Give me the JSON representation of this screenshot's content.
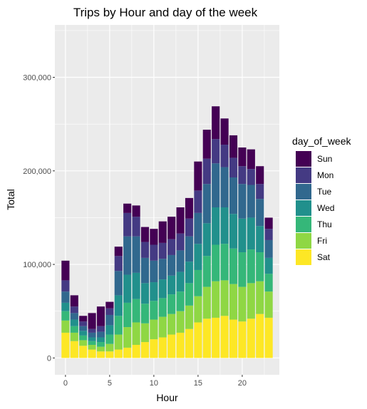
{
  "chart_data": {
    "type": "bar",
    "stacked": true,
    "title": "Trips by Hour and day of the week",
    "xlabel": "Hour",
    "ylabel": "Total",
    "xlim": [
      -1.2,
      24.2
    ],
    "ylim": [
      -18000,
      356000
    ],
    "x_ticks": [
      0,
      5,
      10,
      15,
      20
    ],
    "x_tick_labels": [
      "0",
      "5",
      "10",
      "15",
      "20"
    ],
    "y_ticks": [
      0,
      100000,
      200000,
      300000
    ],
    "y_tick_labels": [
      "0",
      "100,000",
      "200,000",
      "300,000"
    ],
    "grid": true,
    "legend": {
      "title": "day_of_week",
      "position": "right"
    },
    "x": [
      0,
      1,
      2,
      3,
      4,
      5,
      6,
      7,
      8,
      9,
      10,
      11,
      12,
      13,
      14,
      15,
      16,
      17,
      18,
      19,
      20,
      21,
      22,
      23
    ],
    "series": [
      {
        "name": "Sat",
        "color": "#FDE725",
        "values": [
          27000,
          18000,
          13000,
          9000,
          7000,
          7000,
          9000,
          11000,
          14000,
          17000,
          20000,
          22000,
          25000,
          27000,
          31000,
          38000,
          42000,
          43000,
          45000,
          41000,
          39000,
          42000,
          47000,
          43000
        ]
      },
      {
        "name": "Fri",
        "color": "#8FD744",
        "values": [
          13000,
          9000,
          6000,
          5000,
          5000,
          8000,
          16000,
          22000,
          24000,
          20000,
          21000,
          22000,
          22000,
          23000,
          25000,
          28000,
          34000,
          39000,
          38000,
          38000,
          37000,
          38000,
          35000,
          28000
        ]
      },
      {
        "name": "Thu",
        "color": "#35B779",
        "values": [
          10000,
          7000,
          5000,
          4000,
          5000,
          10000,
          20000,
          26000,
          25000,
          21000,
          20000,
          20000,
          21000,
          21000,
          24000,
          28000,
          33000,
          39000,
          39000,
          38000,
          37000,
          36000,
          31000,
          19000
        ]
      },
      {
        "name": "Wed",
        "color": "#21908C",
        "values": [
          9000,
          7000,
          5000,
          4000,
          5000,
          10000,
          22000,
          30000,
          28000,
          22000,
          20000,
          20000,
          20000,
          21000,
          23000,
          28000,
          35000,
          40000,
          39000,
          37000,
          36000,
          34000,
          28000,
          17000
        ]
      },
      {
        "name": "Tue",
        "color": "#31688E",
        "values": [
          12000,
          7000,
          5000,
          5000,
          6000,
          11000,
          26000,
          41000,
          39000,
          27000,
          23000,
          22000,
          22000,
          23000,
          27000,
          33000,
          42000,
          47000,
          43000,
          39000,
          37000,
          35000,
          29000,
          19000
        ]
      },
      {
        "name": "Mon",
        "color": "#443A83",
        "values": [
          12000,
          7000,
          5000,
          4000,
          6000,
          7000,
          16000,
          25000,
          21000,
          17000,
          17000,
          17000,
          17000,
          18000,
          19000,
          24000,
          27000,
          26000,
          24000,
          21000,
          19000,
          17000,
          16000,
          12000
        ]
      },
      {
        "name": "Sun",
        "color": "#440154",
        "values": [
          21000,
          12000,
          6000,
          17000,
          21000,
          7000,
          10000,
          10000,
          12000,
          16000,
          17000,
          23000,
          24000,
          28000,
          22000,
          31000,
          31000,
          35000,
          28000,
          24000,
          20000,
          21000,
          19000,
          12000
        ]
      }
    ]
  }
}
